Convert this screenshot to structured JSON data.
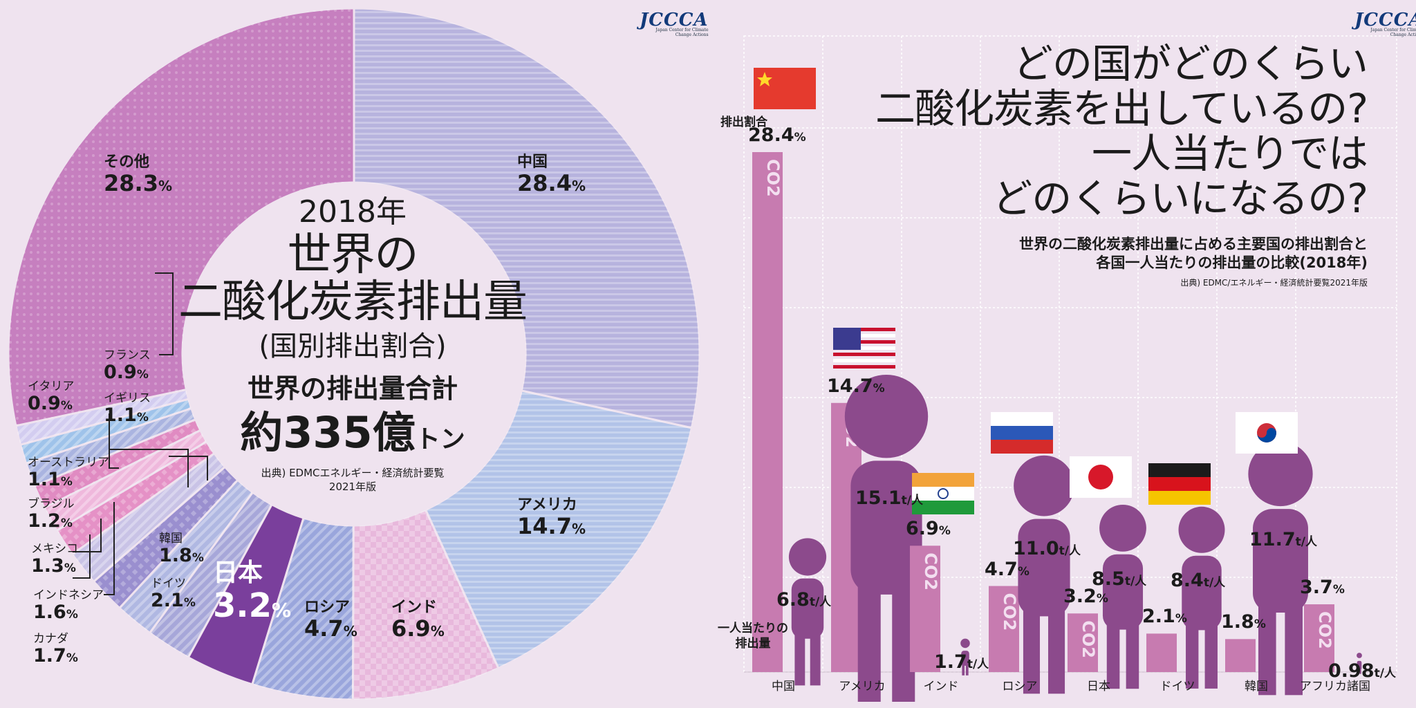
{
  "logo": "JCCCA",
  "logo_sub": "Japan Center for Climate Change Actions",
  "left": {
    "year": "2018年",
    "title_line1": "世界の",
    "title_line2": "二酸化炭素排出量",
    "subtitle": "(国別排出割合)",
    "total_label": "世界の排出量合計",
    "total_prefix": "約",
    "total_value": "335億",
    "total_unit": "トン",
    "source_line1": "出典) EDMCエネルギー・経済統計要覧",
    "source_line2": "2021年版"
  },
  "chart_data": [
    {
      "type": "pie",
      "title": "2018年 世界の二酸化炭素排出量(国別排出割合)",
      "unit": "%",
      "categories": [
        "中国",
        "アメリカ",
        "インド",
        "ロシア",
        "日本",
        "ドイツ",
        "韓国",
        "カナダ",
        "インドネシア",
        "メキシコ",
        "ブラジル",
        "オーストラリア",
        "イギリス",
        "イタリア",
        "フランス",
        "その他"
      ],
      "values": [
        28.4,
        14.7,
        6.9,
        4.7,
        3.2,
        2.1,
        1.8,
        1.7,
        1.6,
        1.3,
        1.2,
        1.1,
        1.1,
        0.9,
        0.9,
        28.3
      ],
      "colors": [
        "#b7b3de",
        "#b2c3e8",
        "#e8b8dc",
        "#9aa6dc",
        "#7a3f9c",
        "#a7a7d9",
        "#b0b8e2",
        "#9a8fcf",
        "#c9c3e6",
        "#e591c6",
        "#efb8dc",
        "#e08bc2",
        "#aab4e0",
        "#9fc3ea",
        "#d3cdf0",
        "#c67fbf"
      ],
      "annotations": [
        "世界の排出量合計",
        "約335億トン"
      ]
    },
    {
      "type": "bar",
      "title": "世界の二酸化炭素排出量に占める主要国の排出割合と各国一人当たりの排出量の比較(2018年)",
      "categories": [
        "中国",
        "アメリカ",
        "インド",
        "ロシア",
        "日本",
        "ドイツ",
        "韓国",
        "アフリカ諸国"
      ],
      "series": [
        {
          "name": "排出割合",
          "unit": "%",
          "values": [
            28.4,
            14.7,
            6.9,
            4.7,
            3.2,
            2.1,
            1.8,
            3.7
          ]
        },
        {
          "name": "一人当たりの排出量",
          "unit": "t/人",
          "values": [
            6.8,
            15.1,
            1.7,
            11.0,
            8.5,
            8.4,
            11.7,
            0.98
          ]
        }
      ],
      "bar_text": "CO2",
      "annotations": [
        "排出割合",
        "一人当たりの排出量"
      ]
    }
  ],
  "pie_labels": {
    "china": {
      "name": "中国",
      "value": "28.4"
    },
    "usa": {
      "name": "アメリカ",
      "value": "14.7"
    },
    "india": {
      "name": "インド",
      "value": "6.9"
    },
    "russia": {
      "name": "ロシア",
      "value": "4.7"
    },
    "japan": {
      "name": "日本",
      "value": "3.2"
    },
    "germany": {
      "name": "ドイツ",
      "value": "2.1"
    },
    "korea": {
      "name": "韓国",
      "value": "1.8"
    },
    "canada": {
      "name": "カナダ",
      "value": "1.7"
    },
    "indonesia": {
      "name": "インドネシア",
      "value": "1.6"
    },
    "mexico": {
      "name": "メキシコ",
      "value": "1.3"
    },
    "brazil": {
      "name": "ブラジル",
      "value": "1.2"
    },
    "australia": {
      "name": "オーストラリア",
      "value": "1.1"
    },
    "uk": {
      "name": "イギリス",
      "value": "1.1"
    },
    "italy": {
      "name": "イタリア",
      "value": "0.9"
    },
    "france": {
      "name": "フランス",
      "value": "0.9"
    },
    "other": {
      "name": "その他",
      "value": "28.3"
    },
    "pct": "%"
  },
  "right": {
    "title_lines": [
      "どの国がどのくらい",
      "二酸化炭素を出しているの?",
      "一人当たりでは",
      "どのくらいになるの?"
    ],
    "subtitle_line1": "世界の二酸化炭素排出量に占める主要国の排出割合と",
    "subtitle_line2": "各国一人当たりの排出量の比較(2018年)",
    "source": "出典) EDMC/エネルギー・経済統計要覧2021年版",
    "share_label": "排出割合",
    "per_capita_label_line1": "一人当たりの",
    "per_capita_label_line2": "排出量",
    "pct": "%",
    "tpp": "t/人",
    "share_values": [
      "28.4",
      "14.7",
      "6.9",
      "4.7",
      "3.2",
      "2.1",
      "1.8",
      "3.7"
    ],
    "pc_values": [
      "6.8",
      "15.1",
      "1.7",
      "11.0",
      "8.5",
      "8.4",
      "11.7",
      "0.98"
    ],
    "countries": [
      "中国",
      "アメリカ",
      "インド",
      "ロシア",
      "日本",
      "ドイツ",
      "韓国",
      "アフリカ諸国"
    ],
    "co2": "CO2"
  }
}
